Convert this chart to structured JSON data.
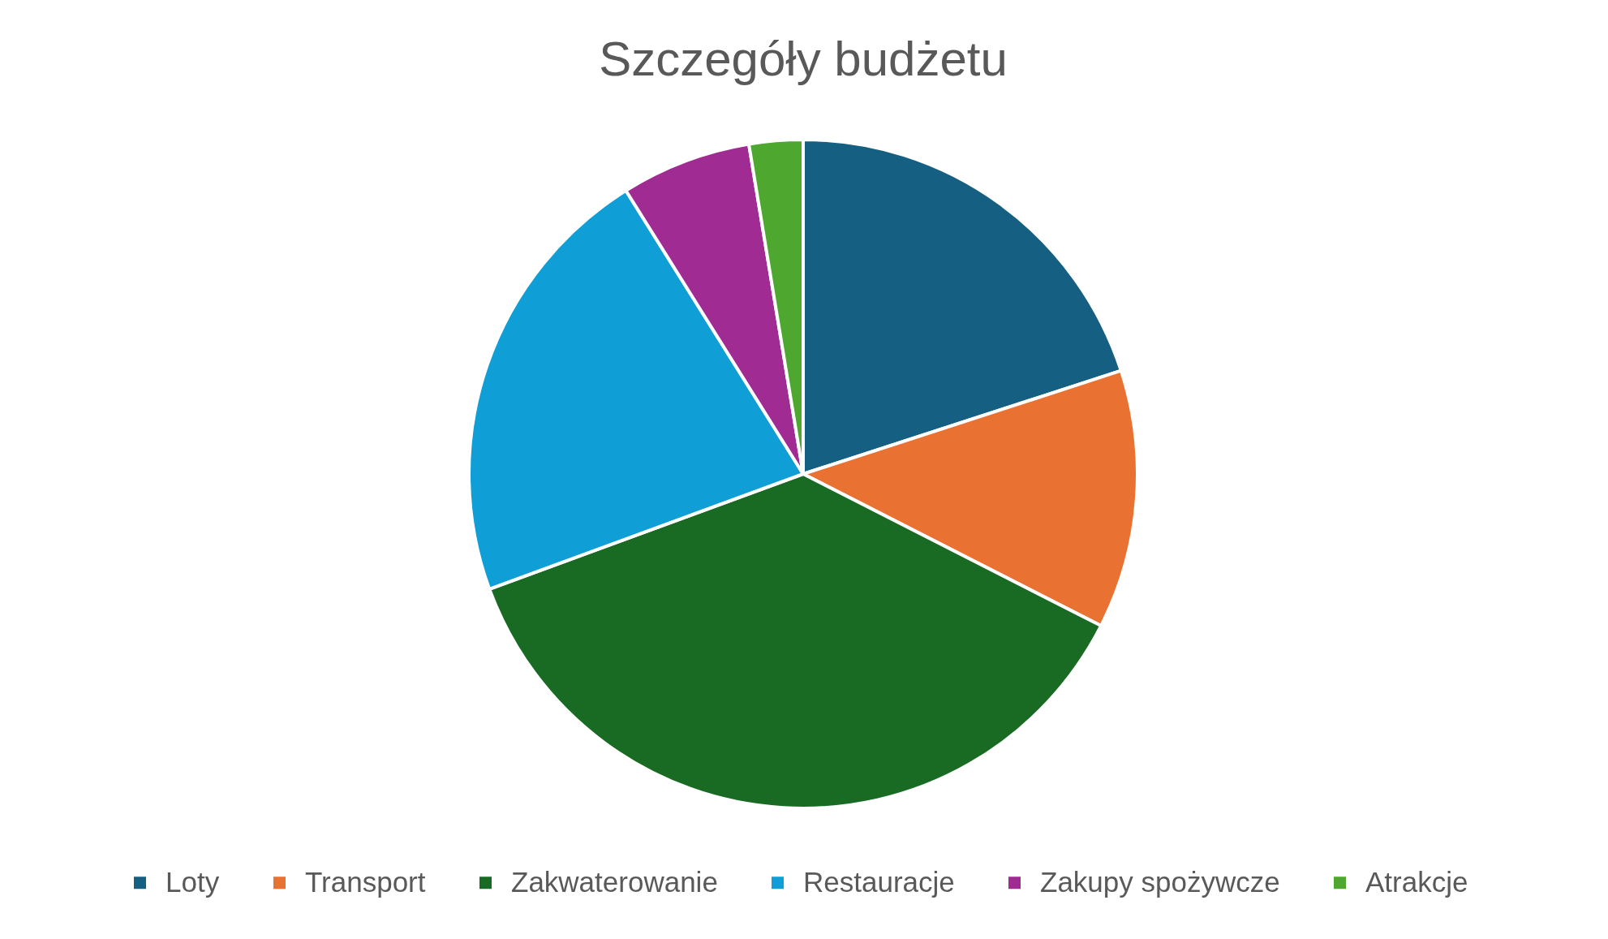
{
  "chart_data": {
    "type": "pie",
    "title": "Szczegóły budżetu",
    "categories": [
      "Loty",
      "Transport",
      "Zakwaterowanie",
      "Restauracje",
      "Zakupy spożywcze",
      "Atrakcje"
    ],
    "values": [
      20,
      12.5,
      36.9,
      21.7,
      6.3,
      2.6
    ],
    "colors": [
      "#156082",
      "#e97132",
      "#196b24",
      "#0f9ed5",
      "#a02b93",
      "#4ea72e"
    ],
    "legend": "bottom"
  }
}
